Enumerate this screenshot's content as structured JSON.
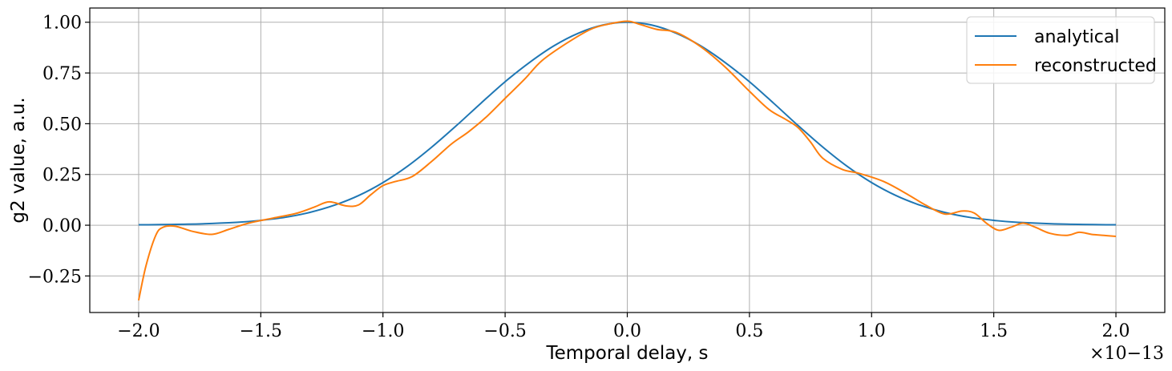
{
  "chart_data": {
    "type": "line",
    "xlabel": "Temporal delay, s",
    "ylabel": "g2 value, a.u.",
    "x_offset_text": "×10−13",
    "x_scale_exponent": -13,
    "xlim": [
      -2.2e-13,
      2.2e-13
    ],
    "ylim": [
      -0.43,
      1.07
    ],
    "x_ticks": [
      -2e-13,
      -1.5e-13,
      -1e-13,
      -5e-14,
      0.0,
      5e-14,
      1e-13,
      1.5e-13,
      2e-13
    ],
    "x_tick_labels": [
      "−2.0",
      "−1.5",
      "−1.0",
      "−0.5",
      "0.0",
      "0.5",
      "1.0",
      "1.5",
      "2.0"
    ],
    "y_ticks": [
      -0.25,
      0.0,
      0.25,
      0.5,
      0.75,
      1.0
    ],
    "y_tick_labels": [
      "−0.25",
      "0.00",
      "0.25",
      "0.50",
      "0.75",
      "1.00"
    ],
    "grid": true,
    "legend_position": "top-right",
    "series": [
      {
        "name": "analytical",
        "color": "#1f77b4",
        "x": [
          -2e-13,
          -1.8e-13,
          -1.6e-13,
          -1.5e-13,
          -1.4e-13,
          -1.3e-13,
          -1.2e-13,
          -1.1e-13,
          -1e-13,
          -9e-14,
          -8e-14,
          -7e-14,
          -6e-14,
          -5e-14,
          -4e-14,
          -3e-14,
          -2e-14,
          -1e-14,
          0.0,
          1e-14,
          2e-14,
          3e-14,
          4e-14,
          5e-14,
          6e-14,
          7e-14,
          8e-14,
          9e-14,
          1e-13,
          1.1e-13,
          1.2e-13,
          1.3e-13,
          1.4e-13,
          1.5e-13,
          1.6e-13,
          1.8e-13,
          2e-13
        ],
        "y": [
          0.002,
          0.005,
          0.014,
          0.024,
          0.039,
          0.063,
          0.098,
          0.146,
          0.21,
          0.29,
          0.385,
          0.49,
          0.6,
          0.707,
          0.802,
          0.884,
          0.946,
          0.986,
          1.0,
          0.986,
          0.946,
          0.884,
          0.802,
          0.707,
          0.6,
          0.49,
          0.385,
          0.29,
          0.21,
          0.146,
          0.098,
          0.063,
          0.039,
          0.024,
          0.014,
          0.005,
          0.002
        ]
      },
      {
        "name": "reconstructed",
        "color": "#ff7f0e",
        "x": [
          -2e-13,
          -1.97e-13,
          -1.93e-13,
          -1.9e-13,
          -1.85e-13,
          -1.78e-13,
          -1.7e-13,
          -1.63e-13,
          -1.55e-13,
          -1.45e-13,
          -1.35e-13,
          -1.28e-13,
          -1.22e-13,
          -1.15e-13,
          -1.1e-13,
          -1.05e-13,
          -1e-13,
          -9.5e-14,
          -8.8e-14,
          -8e-14,
          -7.2e-14,
          -6.5e-14,
          -5.8e-14,
          -5e-14,
          -4.2e-14,
          -3.5e-14,
          -2.5e-14,
          -1.5e-14,
          -8e-15,
          0.0,
          5e-15,
          1.2e-14,
          2e-14,
          3e-14,
          4e-14,
          5e-14,
          5.8e-14,
          6.5e-14,
          7e-14,
          7.5e-14,
          8e-14,
          8.8e-14,
          9.5e-14,
          1.05e-13,
          1.15e-13,
          1.22e-13,
          1.3e-13,
          1.37e-13,
          1.42e-13,
          1.47e-13,
          1.52e-13,
          1.57e-13,
          1.62e-13,
          1.67e-13,
          1.73e-13,
          1.8e-13,
          1.85e-13,
          1.9e-13,
          1.95e-13,
          2e-13
        ],
        "y": [
          -0.37,
          -0.2,
          -0.05,
          -0.01,
          -0.005,
          -0.03,
          -0.045,
          -0.02,
          0.01,
          0.035,
          0.06,
          0.09,
          0.115,
          0.095,
          0.1,
          0.15,
          0.195,
          0.215,
          0.24,
          0.315,
          0.4,
          0.46,
          0.53,
          0.625,
          0.72,
          0.81,
          0.895,
          0.965,
          0.99,
          1.005,
          0.99,
          0.965,
          0.95,
          0.88,
          0.78,
          0.66,
          0.57,
          0.52,
          0.48,
          0.41,
          0.33,
          0.275,
          0.255,
          0.215,
          0.15,
          0.1,
          0.055,
          0.07,
          0.06,
          0.01,
          -0.025,
          -0.01,
          0.01,
          -0.01,
          -0.04,
          -0.05,
          -0.035,
          -0.045,
          -0.05,
          -0.055
        ]
      }
    ]
  }
}
